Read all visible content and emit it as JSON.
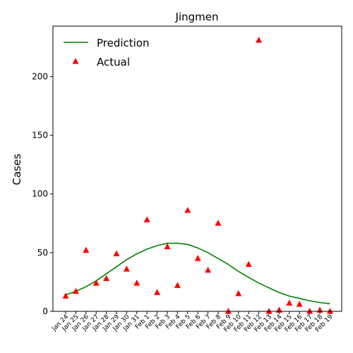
{
  "chart_data": {
    "type": "line",
    "title": "Jingmen",
    "xlabel": "",
    "ylabel": "Cases",
    "categories": [
      "Jan 24",
      "Jan 25",
      "Jan 26",
      "Jan 27",
      "Jan 28",
      "Jan 29",
      "Jan 30",
      "Jan 31",
      "Feb 1",
      "Feb 2",
      "Feb 3",
      "Feb 4",
      "Feb 5",
      "Feb 6",
      "Feb 7",
      "Feb 8",
      "Feb 9",
      "Feb 10",
      "Feb 11",
      "Feb 12",
      "Feb 13",
      "Feb 14",
      "Feb 15",
      "Feb 16",
      "Feb 17",
      "Feb 18",
      "Feb 19"
    ],
    "ylim": [
      0,
      243
    ],
    "yticks": [
      0,
      50,
      100,
      150,
      200
    ],
    "grid": false,
    "legend": "top-left",
    "series": [
      {
        "name": "Prediction",
        "style": "line",
        "color": "#008000",
        "values": [
          14,
          17,
          21,
          26,
          32,
          38,
          44,
          49,
          53,
          56,
          58,
          58,
          57,
          54,
          50,
          45,
          40,
          34,
          29,
          24,
          20,
          16,
          13,
          11,
          9,
          7.5,
          6.5
        ]
      },
      {
        "name": "Actual",
        "style": "marker-triangle",
        "color": "#ff0000",
        "values": [
          13,
          17,
          52,
          24,
          28,
          49,
          36,
          24,
          78,
          16,
          55,
          22,
          86,
          45,
          35,
          75,
          0,
          15,
          40,
          231,
          0,
          1,
          7,
          6,
          0,
          1,
          0
        ]
      }
    ]
  }
}
